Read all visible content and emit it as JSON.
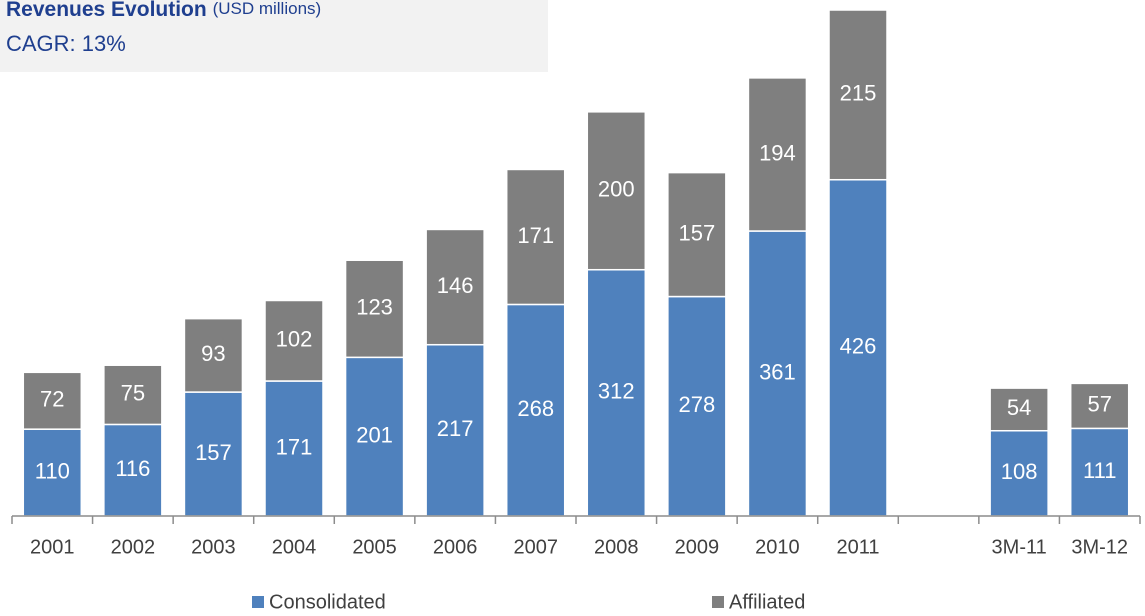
{
  "chart_data": {
    "type": "stacked_bar",
    "title": "Revenues Evolution",
    "subtitle": "(USD millions)",
    "annotation": "CAGR: 13%",
    "categories": [
      "2001",
      "2002",
      "2003",
      "2004",
      "2005",
      "2006",
      "2007",
      "2008",
      "2009",
      "2010",
      "2011",
      null,
      "3M-11",
      "3M-12"
    ],
    "series": [
      {
        "name": "Consolidated",
        "color": "#4f81bd",
        "values": [
          110,
          116,
          157,
          171,
          201,
          217,
          268,
          312,
          278,
          361,
          426,
          null,
          108,
          111
        ]
      },
      {
        "name": "Affiliated",
        "color": "#7f7f7f",
        "values": [
          72,
          75,
          93,
          102,
          123,
          146,
          171,
          200,
          157,
          194,
          215,
          null,
          54,
          57
        ]
      }
    ],
    "legend": "bottom"
  }
}
